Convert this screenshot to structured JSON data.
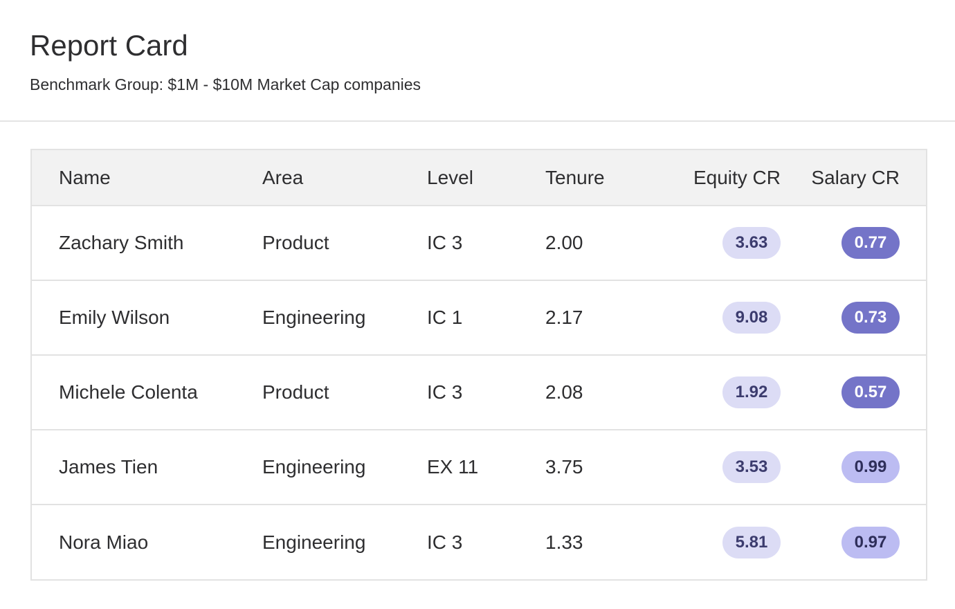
{
  "report": {
    "title": "Report Card",
    "subtitle": "Benchmark Group: $1M - $10M Market Cap companies"
  },
  "table": {
    "headers": {
      "name": "Name",
      "area": "Area",
      "level": "Level",
      "tenure": "Tenure",
      "equity": "Equity CR",
      "salary": "Salary CR"
    },
    "rows": [
      {
        "name": "Zachary Smith",
        "area": "Product",
        "level": "IC 3",
        "tenure": "2.00",
        "equity": "3.63",
        "salary": "0.77"
      },
      {
        "name": "Emily Wilson",
        "area": "Engineering",
        "level": "IC 1",
        "tenure": "2.17",
        "equity": "9.08",
        "salary": "0.73"
      },
      {
        "name": "Michele Colenta",
        "area": "Product",
        "level": "IC 3",
        "tenure": "2.08",
        "equity": "1.92",
        "salary": "0.57"
      },
      {
        "name": "James Tien",
        "area": "Engineering",
        "level": "EX 11",
        "tenure": "3.75",
        "equity": "3.53",
        "salary": "0.99"
      },
      {
        "name": "Nora Miao",
        "area": "Engineering",
        "level": "IC 3",
        "tenure": "1.33",
        "equity": "5.81",
        "salary": "0.97"
      }
    ]
  },
  "colors": {
    "equity_pill_bg": "#dcdcf5",
    "equity_pill_fg": "#3c3c6e",
    "salary_low_bg": "#7474c8",
    "salary_low_fg": "#ffffff",
    "salary_high_bg": "#bcbcf2",
    "salary_high_fg": "#2e2e5a"
  }
}
